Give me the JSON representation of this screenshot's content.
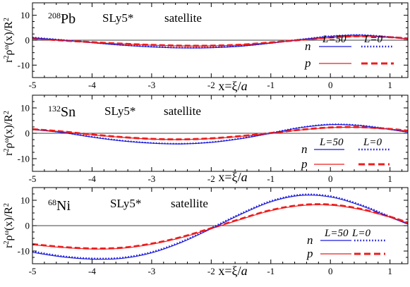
{
  "chart_data": [
    {
      "type": "line",
      "panel_label": {
        "mass": "208",
        "element": "Pb"
      },
      "force_label": "SLy5*",
      "mode_label": "satellite",
      "ylabel": {
        "base": "r",
        "base_sup": "2",
        "rho": "ρ",
        "rho_sup": "ω",
        "arg": "(x)/R",
        "arg_sup": "2"
      },
      "xlabel": {
        "text": "x=ξ/",
        "italic": "a"
      },
      "xlim": [
        -5,
        1.3
      ],
      "ylim": [
        -15,
        15
      ],
      "xticks": [
        -5,
        -4,
        -3,
        -2,
        -1,
        0,
        1
      ],
      "yticks": [
        -10,
        0,
        10
      ],
      "legend": {
        "n": "n",
        "p": "p",
        "L50": "L=50",
        "L0": "L=0"
      },
      "colors": {
        "n": "#1a1adc",
        "p": "#ee1c1c"
      },
      "series": [
        {
          "particle": "n",
          "L": "L=50",
          "x": [
            -5,
            -4.5,
            -4,
            -3.5,
            -3,
            -2.5,
            -2,
            -1.5,
            -1,
            -0.5,
            0,
            0.5,
            1,
            1.3
          ],
          "y": [
            1.0,
            0.0,
            -1.0,
            -2.0,
            -2.7,
            -3.1,
            -3.0,
            -2.4,
            -1.2,
            0.2,
            1.5,
            2.0,
            1.2,
            0.4
          ]
        },
        {
          "particle": "n",
          "L": "L=0",
          "x": [
            -5,
            -4.5,
            -4,
            -3.5,
            -3,
            -2.5,
            -2,
            -1.5,
            -1,
            -0.5,
            0,
            0.5,
            1,
            1.3
          ],
          "y": [
            1.1,
            0.1,
            -0.9,
            -1.9,
            -2.6,
            -3.0,
            -2.9,
            -2.3,
            -1.1,
            0.3,
            1.6,
            2.1,
            1.3,
            0.5
          ]
        },
        {
          "particle": "p",
          "L": "L=50",
          "x": [
            -5,
            -4.5,
            -4,
            -3.5,
            -3,
            -2.5,
            -2,
            -1.5,
            -1,
            -0.5,
            0,
            0.5,
            1,
            1.3
          ],
          "y": [
            0.6,
            -0.2,
            -0.9,
            -1.5,
            -2.0,
            -2.3,
            -2.3,
            -1.9,
            -1.0,
            0.0,
            1.0,
            1.5,
            1.1,
            0.6
          ]
        },
        {
          "particle": "p",
          "L": "L=0",
          "x": [
            -5,
            -4.5,
            -4,
            -3.5,
            -3,
            -2.5,
            -2,
            -1.5,
            -1,
            -0.5,
            0,
            0.5,
            1,
            1.3
          ],
          "y": [
            0.7,
            -0.1,
            -0.8,
            -1.4,
            -1.9,
            -2.2,
            -2.2,
            -1.8,
            -0.9,
            0.1,
            1.1,
            1.6,
            1.2,
            0.7
          ]
        }
      ]
    },
    {
      "type": "line",
      "panel_label": {
        "mass": "132",
        "element": "Sn"
      },
      "force_label": "SLy5*",
      "mode_label": "satellite",
      "ylabel": {
        "base": "r",
        "base_sup": "2",
        "rho": "ρ",
        "rho_sup": "ω",
        "arg": "(x)/R",
        "arg_sup": "2"
      },
      "xlabel": {
        "text": "x=ξ/",
        "italic": "a"
      },
      "xlim": [
        -5,
        1.3
      ],
      "ylim": [
        -15,
        15
      ],
      "xticks": [
        -5,
        -4,
        -3,
        -2,
        -1,
        0,
        1
      ],
      "yticks": [
        -10,
        0,
        10
      ],
      "legend": {
        "n": "n",
        "p": "p",
        "L50": "L=50",
        "L0": "L=0"
      },
      "colors": {
        "n": "#1a1adc",
        "p": "#ee1c1c"
      },
      "series": [
        {
          "particle": "n",
          "L": "L=50",
          "x": [
            -5,
            -4.5,
            -4,
            -3.5,
            -3,
            -2.5,
            -2,
            -1.5,
            -1,
            -0.5,
            0,
            0.5,
            1,
            1.3
          ],
          "y": [
            1.5,
            0.3,
            -1.5,
            -3.0,
            -3.9,
            -4.2,
            -3.6,
            -2.1,
            0.0,
            2.2,
            3.4,
            3.0,
            1.5,
            0.4
          ]
        },
        {
          "particle": "n",
          "L": "L=0",
          "x": [
            -5,
            -4.5,
            -4,
            -3.5,
            -3,
            -2.5,
            -2,
            -1.5,
            -1,
            -0.5,
            0,
            0.5,
            1,
            1.3
          ],
          "y": [
            1.6,
            0.4,
            -1.4,
            -2.9,
            -3.8,
            -4.1,
            -3.5,
            -2.0,
            0.1,
            2.3,
            3.5,
            3.1,
            1.6,
            0.5
          ]
        },
        {
          "particle": "p",
          "L": "L=50",
          "x": [
            -5,
            -4.5,
            -4,
            -3.5,
            -3,
            -2.5,
            -2,
            -1.5,
            -1,
            -0.5,
            0,
            0.5,
            1,
            1.3
          ],
          "y": [
            1.5,
            0.6,
            -0.6,
            -1.6,
            -2.3,
            -2.5,
            -2.1,
            -1.2,
            0.0,
            1.3,
            2.2,
            2.3,
            1.6,
            0.9
          ]
        },
        {
          "particle": "p",
          "L": "L=0",
          "x": [
            -5,
            -4.5,
            -4,
            -3.5,
            -3,
            -2.5,
            -2,
            -1.5,
            -1,
            -0.5,
            0,
            0.5,
            1,
            1.3
          ],
          "y": [
            1.6,
            0.7,
            -0.5,
            -1.5,
            -2.2,
            -2.4,
            -2.0,
            -1.1,
            0.1,
            1.4,
            2.3,
            2.4,
            1.7,
            1.0
          ]
        }
      ]
    },
    {
      "type": "line",
      "panel_label": {
        "mass": "68",
        "element": "Ni"
      },
      "force_label": "SLy5*",
      "mode_label": "satellite",
      "ylabel": {
        "base": "r",
        "base_sup": "2",
        "rho": "ρ",
        "rho_sup": "ω",
        "arg": "(x)/R",
        "arg_sup": "2"
      },
      "xlabel": {
        "text": "x=ξ/",
        "italic": "a"
      },
      "xlim": [
        -5,
        1.3
      ],
      "ylim": [
        -15,
        15
      ],
      "xticks": [
        -5,
        -4,
        -3,
        -2,
        -1,
        0,
        1
      ],
      "yticks": [
        -10,
        0,
        10
      ],
      "legend": {
        "n": "n",
        "p": "p",
        "L50": "L=50",
        "L0": "L=0"
      },
      "colors": {
        "n": "#1a1adc",
        "p": "#ee1c1c"
      },
      "series": [
        {
          "particle": "n",
          "L": "L=50",
          "x": [
            -5,
            -4.5,
            -4,
            -3.5,
            -3,
            -2.5,
            -2,
            -1.5,
            -1,
            -0.5,
            0,
            0.5,
            1,
            1.3
          ],
          "y": [
            -10.5,
            -12.3,
            -13.2,
            -12.9,
            -10.7,
            -6.6,
            -1.2,
            4.5,
            9.4,
            11.9,
            11.3,
            8.0,
            3.3,
            0.6
          ]
        },
        {
          "particle": "n",
          "L": "L=0",
          "x": [
            -5,
            -4.5,
            -4,
            -3.5,
            -3,
            -2.5,
            -2,
            -1.5,
            -1,
            -0.5,
            0,
            0.5,
            1,
            1.3
          ],
          "y": [
            -10.1,
            -12.0,
            -12.9,
            -12.6,
            -10.4,
            -6.3,
            -0.9,
            4.8,
            9.7,
            12.2,
            11.6,
            8.3,
            3.6,
            0.9
          ]
        },
        {
          "particle": "p",
          "L": "L=50",
          "x": [
            -5,
            -4.5,
            -4,
            -3.5,
            -3,
            -2.5,
            -2,
            -1.5,
            -1,
            -0.5,
            0,
            0.5,
            1,
            1.3
          ],
          "y": [
            -7.5,
            -8.6,
            -9.2,
            -8.9,
            -7.3,
            -4.7,
            -1.2,
            2.5,
            5.9,
            7.9,
            8.1,
            6.4,
            3.3,
            1.0
          ]
        },
        {
          "particle": "p",
          "L": "L=0",
          "x": [
            -5,
            -4.5,
            -4,
            -3.5,
            -3,
            -2.5,
            -2,
            -1.5,
            -1,
            -0.5,
            0,
            0.5,
            1,
            1.3
          ],
          "y": [
            -7.3,
            -8.4,
            -9.0,
            -8.7,
            -7.1,
            -4.5,
            -1.0,
            2.7,
            6.1,
            8.1,
            8.3,
            6.6,
            3.5,
            1.2
          ]
        }
      ]
    }
  ]
}
